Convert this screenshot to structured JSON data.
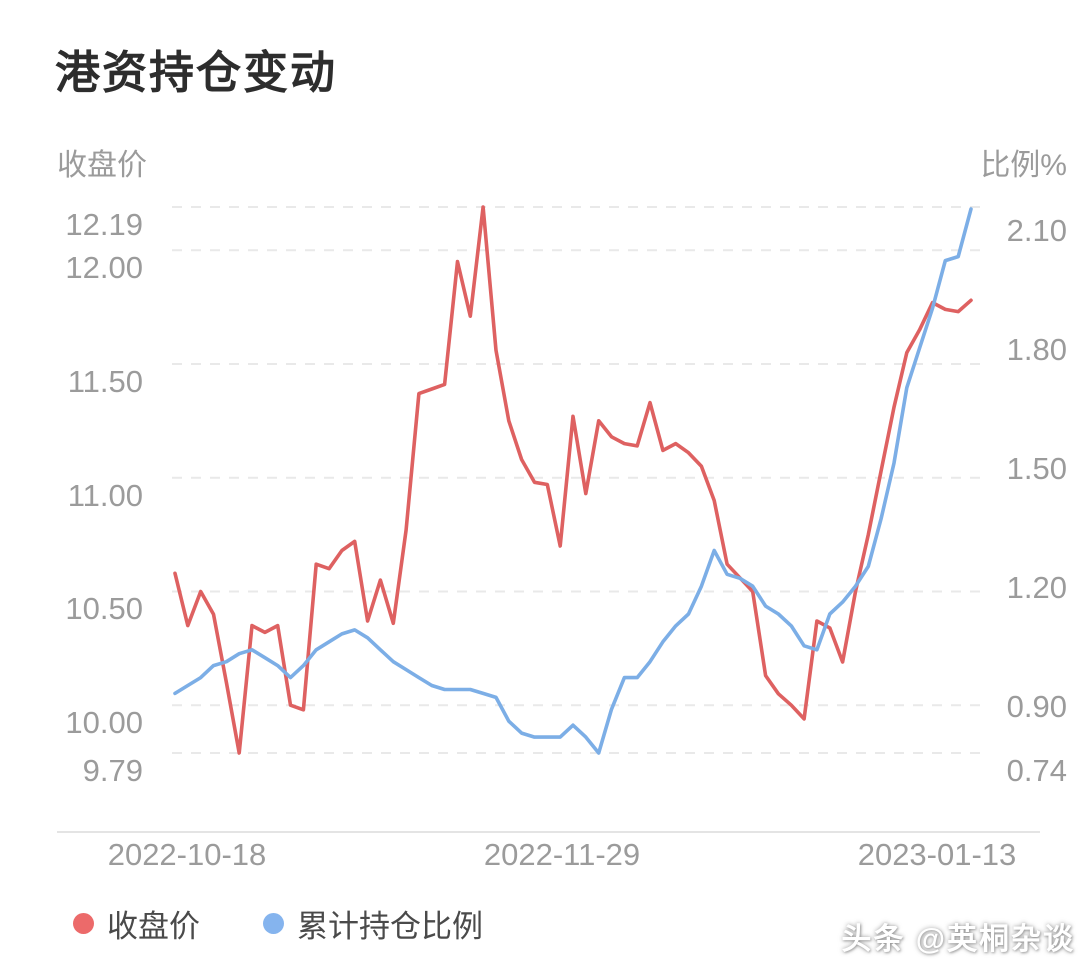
{
  "title": "港资持仓变动",
  "left_axis": {
    "label": "收盘价",
    "tick_labels": [
      "12.19",
      "12.00",
      "11.50",
      "11.00",
      "10.50",
      "10.00",
      "9.79"
    ]
  },
  "right_axis": {
    "label": "比例%",
    "tick_labels": [
      "2.10",
      "1.80",
      "1.50",
      "1.20",
      "0.90",
      "0.74"
    ]
  },
  "x_axis": {
    "labels": [
      "2022-10-18",
      "2022-11-29",
      "2023-01-13"
    ]
  },
  "legend": {
    "items": [
      {
        "label": "收盘价",
        "color": "#ec6a6a"
      },
      {
        "label": "累计持仓比例",
        "color": "#85b4ee"
      }
    ]
  },
  "watermark": "头条 @英桐杂谈",
  "colors": {
    "close_line": "#de6161",
    "ratio_line": "#7caee6",
    "grid": "#e9e9e9",
    "axis_line": "#e4e4e4",
    "tick_text": "#9b9b9b",
    "title_text": "#2d2d2d",
    "background": "#ffffff"
  },
  "chart_data": {
    "type": "line",
    "title": "港资持仓变动",
    "left_axis_label": "收盘价",
    "right_axis_label": "比例%",
    "grid": "dashed-horizontal",
    "legend_position": "bottom-left",
    "left_ticks": [
      12.19,
      12.0,
      11.5,
      11.0,
      10.5,
      10.0,
      9.79
    ],
    "right_ticks": [
      2.1,
      1.8,
      1.5,
      1.2,
      0.9,
      0.74
    ],
    "left_ylim": [
      9.79,
      12.19
    ],
    "right_ylim": [
      0.74,
      2.115
    ],
    "x_tick_labels": [
      {
        "label": "2022-10-18",
        "index": 0
      },
      {
        "label": "2022-11-29",
        "index": 30
      },
      {
        "label": "2023-01-13",
        "index": 62
      }
    ],
    "x_range_note": "63 daily points, 2022-10-18 to 2023-01-13, values estimated from plot",
    "series": [
      {
        "name": "收盘价",
        "axis": "left",
        "color": "#de6161",
        "values": [
          10.58,
          10.35,
          10.5,
          10.4,
          10.1,
          9.79,
          10.35,
          10.32,
          10.35,
          10.0,
          9.98,
          10.62,
          10.6,
          10.68,
          10.72,
          10.37,
          10.55,
          10.36,
          10.77,
          11.37,
          11.39,
          11.41,
          11.95,
          11.71,
          12.19,
          11.56,
          11.25,
          11.08,
          10.98,
          10.97,
          10.7,
          11.27,
          10.93,
          11.25,
          11.18,
          11.15,
          11.14,
          11.33,
          11.12,
          11.15,
          11.11,
          11.05,
          10.9,
          10.62,
          10.56,
          10.5,
          10.13,
          10.05,
          10.0,
          9.94,
          10.37,
          10.34,
          10.19,
          10.5,
          10.75,
          11.03,
          11.31,
          11.55,
          11.65,
          11.77,
          11.74,
          11.73,
          11.78
        ]
      },
      {
        "name": "累计持仓比例",
        "axis": "right",
        "color": "#7caee6",
        "values": [
          0.89,
          0.91,
          0.93,
          0.96,
          0.97,
          0.99,
          1.0,
          0.98,
          0.96,
          0.93,
          0.96,
          1.0,
          1.02,
          1.04,
          1.05,
          1.03,
          1.0,
          0.97,
          0.95,
          0.93,
          0.91,
          0.9,
          0.9,
          0.9,
          0.89,
          0.88,
          0.82,
          0.79,
          0.78,
          0.78,
          0.78,
          0.81,
          0.78,
          0.74,
          0.85,
          0.93,
          0.93,
          0.97,
          1.02,
          1.06,
          1.09,
          1.16,
          1.25,
          1.19,
          1.18,
          1.16,
          1.11,
          1.09,
          1.06,
          1.01,
          1.0,
          1.09,
          1.12,
          1.16,
          1.21,
          1.33,
          1.47,
          1.66,
          1.76,
          1.86,
          1.98,
          1.99,
          2.11
        ]
      }
    ]
  }
}
